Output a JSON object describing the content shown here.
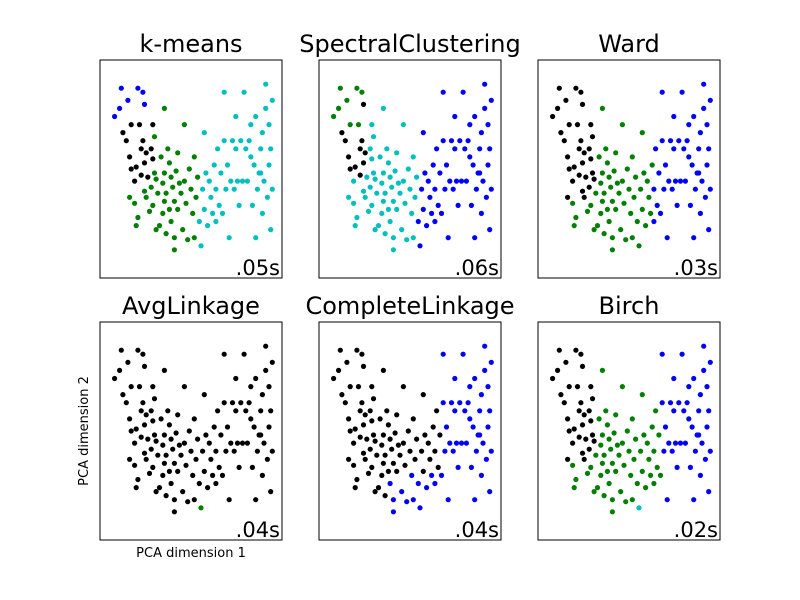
{
  "colors": {
    "black": "#000000",
    "green": "#007f00",
    "blue": "#0000ff",
    "cyan": "#00bfbf",
    "background": "#ffffff"
  },
  "chart_data": {
    "type": "scatter",
    "grid": false,
    "xlabel": "PCA dimension 1",
    "ylabel": "PCA dimension 2",
    "xlim": [
      0,
      100
    ],
    "ylim": [
      0,
      100
    ],
    "base_points": [
      [
        4,
        76
      ],
      [
        7,
        80
      ],
      [
        9,
        68
      ],
      [
        11,
        64
      ],
      [
        13,
        56
      ],
      [
        13,
        36
      ],
      [
        14,
        72
      ],
      [
        14,
        50
      ],
      [
        16,
        44
      ],
      [
        16,
        33
      ],
      [
        17,
        22
      ],
      [
        17,
        51
      ],
      [
        18,
        26
      ],
      [
        19,
        72
      ],
      [
        20,
        60
      ],
      [
        20,
        47
      ],
      [
        21,
        88
      ],
      [
        21,
        64
      ],
      [
        22,
        53
      ],
      [
        22,
        39
      ],
      [
        23,
        36
      ],
      [
        23,
        58
      ],
      [
        24,
        46
      ],
      [
        25,
        29
      ],
      [
        26,
        60
      ],
      [
        26,
        41
      ],
      [
        27,
        72
      ],
      [
        27,
        32
      ],
      [
        27,
        55
      ],
      [
        28,
        48
      ],
      [
        29,
        20
      ],
      [
        29,
        45
      ],
      [
        30,
        38
      ],
      [
        31,
        22
      ],
      [
        32,
        56
      ],
      [
        33,
        43
      ],
      [
        33,
        28
      ],
      [
        34,
        48
      ],
      [
        34,
        34
      ],
      [
        35,
        18
      ],
      [
        35,
        38
      ],
      [
        36,
        60
      ],
      [
        37,
        53
      ],
      [
        37,
        30
      ],
      [
        38,
        46
      ],
      [
        38,
        24
      ],
      [
        39,
        41
      ],
      [
        40,
        34
      ],
      [
        40,
        16
      ],
      [
        41,
        49
      ],
      [
        42,
        58
      ],
      [
        42,
        30
      ],
      [
        43,
        43
      ],
      [
        44,
        38
      ],
      [
        45,
        20
      ],
      [
        46,
        44
      ],
      [
        47,
        33
      ],
      [
        48,
        15
      ],
      [
        49,
        50
      ],
      [
        50,
        40
      ],
      [
        51,
        28
      ],
      [
        52,
        56
      ],
      [
        53,
        36
      ],
      [
        54,
        46
      ],
      [
        55,
        24
      ],
      [
        56,
        12
      ],
      [
        57,
        40
      ],
      [
        58,
        30
      ],
      [
        59,
        48
      ],
      [
        60,
        22
      ],
      [
        61,
        44
      ],
      [
        62,
        36
      ],
      [
        63,
        28
      ],
      [
        64,
        52
      ],
      [
        65,
        40
      ],
      [
        66,
        60
      ],
      [
        67,
        32
      ],
      [
        68,
        48
      ],
      [
        69,
        28
      ],
      [
        70,
        64
      ],
      [
        71,
        40
      ],
      [
        72,
        52
      ],
      [
        73,
        16
      ],
      [
        74,
        44
      ],
      [
        75,
        64
      ],
      [
        76,
        40
      ],
      [
        77,
        60
      ],
      [
        78,
        44
      ],
      [
        79,
        32
      ],
      [
        80,
        64
      ],
      [
        81,
        44
      ],
      [
        82,
        88
      ],
      [
        83,
        60
      ],
      [
        84,
        44
      ],
      [
        85,
        64
      ],
      [
        86,
        72
      ],
      [
        87,
        32
      ],
      [
        88,
        52
      ],
      [
        89,
        16
      ],
      [
        89,
        76
      ],
      [
        90,
        40
      ],
      [
        91,
        48
      ],
      [
        92,
        60
      ],
      [
        93,
        28
      ],
      [
        93,
        68
      ],
      [
        94,
        44
      ],
      [
        95,
        80
      ],
      [
        95,
        92
      ],
      [
        96,
        36
      ],
      [
        97,
        72
      ],
      [
        97,
        52
      ],
      [
        98,
        60
      ],
      [
        98,
        20
      ],
      [
        99,
        84
      ],
      [
        99,
        40
      ],
      [
        92,
        48
      ],
      [
        86,
        56
      ],
      [
        77,
        76
      ],
      [
        70,
        88
      ],
      [
        65,
        24
      ],
      [
        58,
        68
      ],
      [
        52,
        16
      ],
      [
        46,
        72
      ],
      [
        40,
        10
      ],
      [
        34,
        80
      ],
      [
        28,
        66
      ],
      [
        22,
        82
      ],
      [
        18,
        90
      ],
      [
        12,
        84
      ],
      [
        8,
        90
      ]
    ],
    "panels": [
      {
        "title": "k-means",
        "time": ".05s",
        "show_xlabel": false,
        "show_ylabel": false,
        "rules": [
          {
            "if": "y>=75 && x<30",
            "c": "blue"
          },
          {
            "if": "x>=55",
            "c": "cyan"
          },
          {
            "if": "x<28 && y>=42",
            "c": "black"
          },
          {
            "else": true,
            "c": "green"
          }
        ]
      },
      {
        "title": "SpectralClustering",
        "time": ".06s",
        "show_xlabel": false,
        "show_ylabel": false,
        "rules": [
          {
            "if": "x>=55",
            "c": "blue"
          },
          {
            "if": "x<22 && y>=70",
            "c": "green"
          },
          {
            "if": "x<24 && y>=45",
            "c": "black"
          },
          {
            "else": true,
            "c": "cyan"
          }
        ]
      },
      {
        "title": "Ward",
        "time": ".03s",
        "show_xlabel": false,
        "show_ylabel": false,
        "rules": [
          {
            "if": "x>=65",
            "c": "blue"
          },
          {
            "if": "x<30 && y>=36",
            "c": "black"
          },
          {
            "else": true,
            "c": "green"
          }
        ]
      },
      {
        "title": "AvgLinkage",
        "time": ".04s",
        "show_xlabel": true,
        "show_ylabel": true,
        "rules": [
          {
            "if": "x>=97 && y<40 && y>30",
            "c": "cyan"
          },
          {
            "if": "x>=55 && x<60 && y<14",
            "c": "green"
          },
          {
            "else": true,
            "c": "black"
          }
        ]
      },
      {
        "title": "CompleteLinkage",
        "time": ".04s",
        "show_xlabel": false,
        "show_ylabel": false,
        "rules": [
          {
            "if": "x>=70",
            "c": "blue"
          },
          {
            "if": "x>=38 && y<30",
            "c": "blue"
          },
          {
            "else": true,
            "c": "black"
          }
        ]
      },
      {
        "title": "Birch",
        "time": ".02s",
        "show_xlabel": false,
        "show_ylabel": false,
        "rules": [
          {
            "if": "x>=70",
            "c": "blue"
          },
          {
            "if": "x<30 && y>=36",
            "c": "black"
          },
          {
            "if": "x>=55 && y<16",
            "c": "cyan"
          },
          {
            "else": true,
            "c": "green"
          }
        ]
      }
    ]
  }
}
